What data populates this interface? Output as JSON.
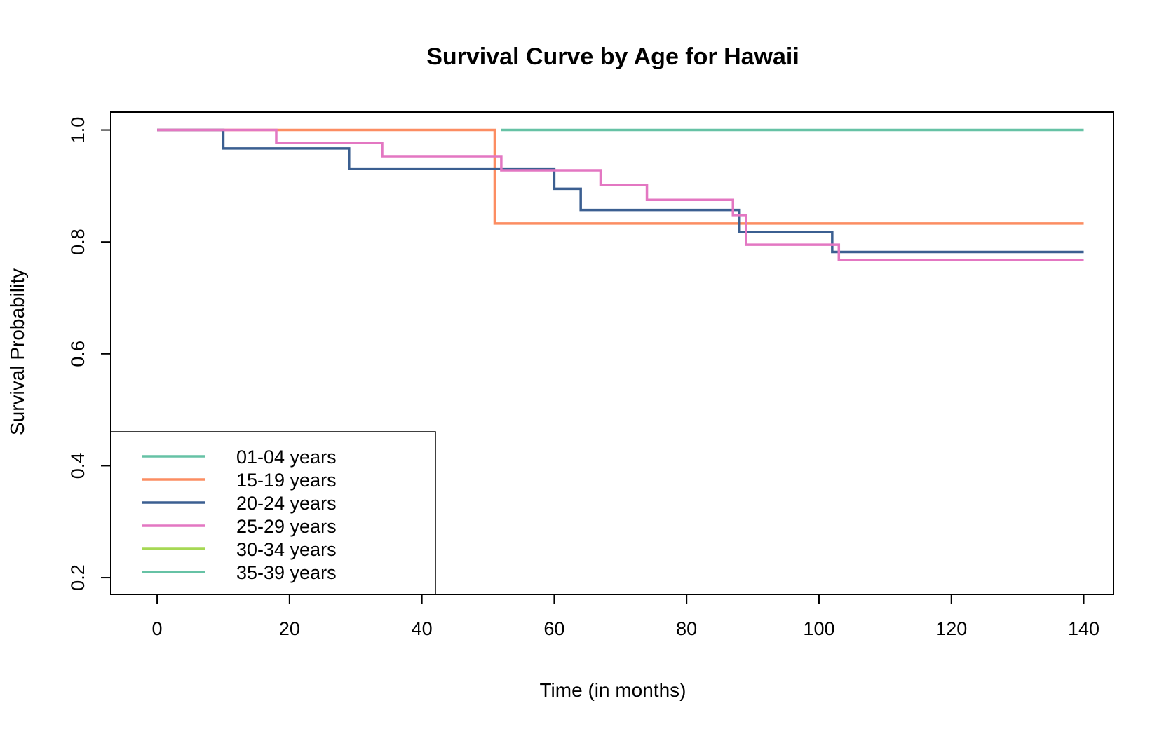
{
  "chart_data": {
    "type": "line",
    "step": true,
    "title": "Survival Curve by Age for Hawaii",
    "xlabel": "Time (in months)",
    "ylabel": "Survival Probability",
    "xlim": [
      -7,
      144.5
    ],
    "ylim": [
      0.17,
      1.032
    ],
    "xticks": [
      0,
      20,
      40,
      60,
      80,
      100,
      120,
      140
    ],
    "yticks": [
      0.2,
      0.4,
      0.6,
      0.8,
      1.0
    ],
    "xtick_labels": [
      "0",
      "20",
      "40",
      "60",
      "80",
      "100",
      "120",
      "140"
    ],
    "ytick_labels": [
      "0.2",
      "0.4",
      "0.6",
      "0.8",
      "1.0"
    ],
    "grid": false,
    "legend_position": "bottom-left",
    "series": [
      {
        "name": "01-04 years",
        "color": "#66c2a5",
        "x": [
          52,
          140
        ],
        "y": [
          1.0,
          1.0
        ]
      },
      {
        "name": "15-19 years",
        "color": "#fc8d62",
        "x": [
          0,
          51,
          140
        ],
        "y": [
          1.0,
          0.833,
          0.833
        ]
      },
      {
        "name": "20-24 years",
        "color": "#3b5f91",
        "x": [
          0,
          10,
          29,
          60,
          64,
          88,
          102,
          140
        ],
        "y": [
          1.0,
          0.967,
          0.931,
          0.895,
          0.857,
          0.818,
          0.782,
          0.782
        ]
      },
      {
        "name": "25-29 years",
        "color": "#e377c2",
        "x": [
          0,
          18,
          34,
          52,
          67,
          74,
          87,
          89,
          103,
          140
        ],
        "y": [
          1.0,
          0.977,
          0.953,
          0.928,
          0.902,
          0.875,
          0.848,
          0.795,
          0.768,
          0.768
        ]
      },
      {
        "name": "30-34 years",
        "color": "#a6d854",
        "x": [],
        "y": []
      },
      {
        "name": "35-39 years",
        "color": "#66c2a5",
        "x": [],
        "y": []
      }
    ]
  }
}
